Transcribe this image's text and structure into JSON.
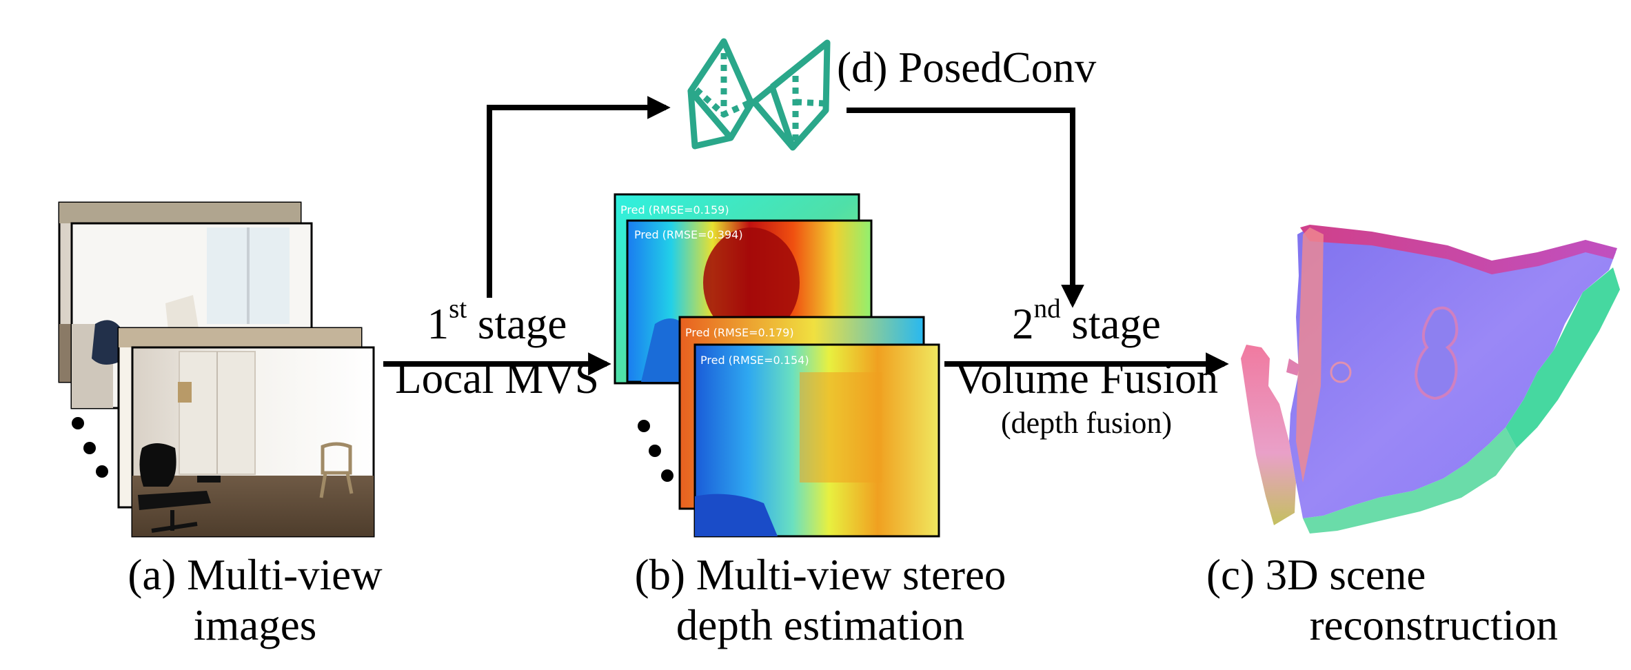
{
  "posedconv": {
    "label": "(d) PosedConv"
  },
  "stage1": {
    "num": "1",
    "sup": "st",
    "word": " stage",
    "method": "Local MVS"
  },
  "stage2": {
    "num": "2",
    "sup": "nd",
    "word": " stage",
    "method": "Volume Fusion",
    "sub": "(depth fusion)"
  },
  "captions": {
    "a": [
      "(a) Multi-view",
      "images"
    ],
    "b": [
      "(b) Multi-view stereo",
      "depth estimation"
    ],
    "c": [
      "(c) 3D scene",
      "reconstruction"
    ]
  },
  "depth_maps": [
    {
      "overlay": "Pred (RMSE=0.159)"
    },
    {
      "overlay": "Pred (RMSE=0.394)"
    },
    {
      "overlay": "Pred (RMSE=0.179)"
    },
    {
      "overlay": "Pred (RMSE=0.154)"
    }
  ],
  "colors": {
    "posedconv_icon": "#2aa78a",
    "arrows": "#000000",
    "frame": "#000000"
  }
}
